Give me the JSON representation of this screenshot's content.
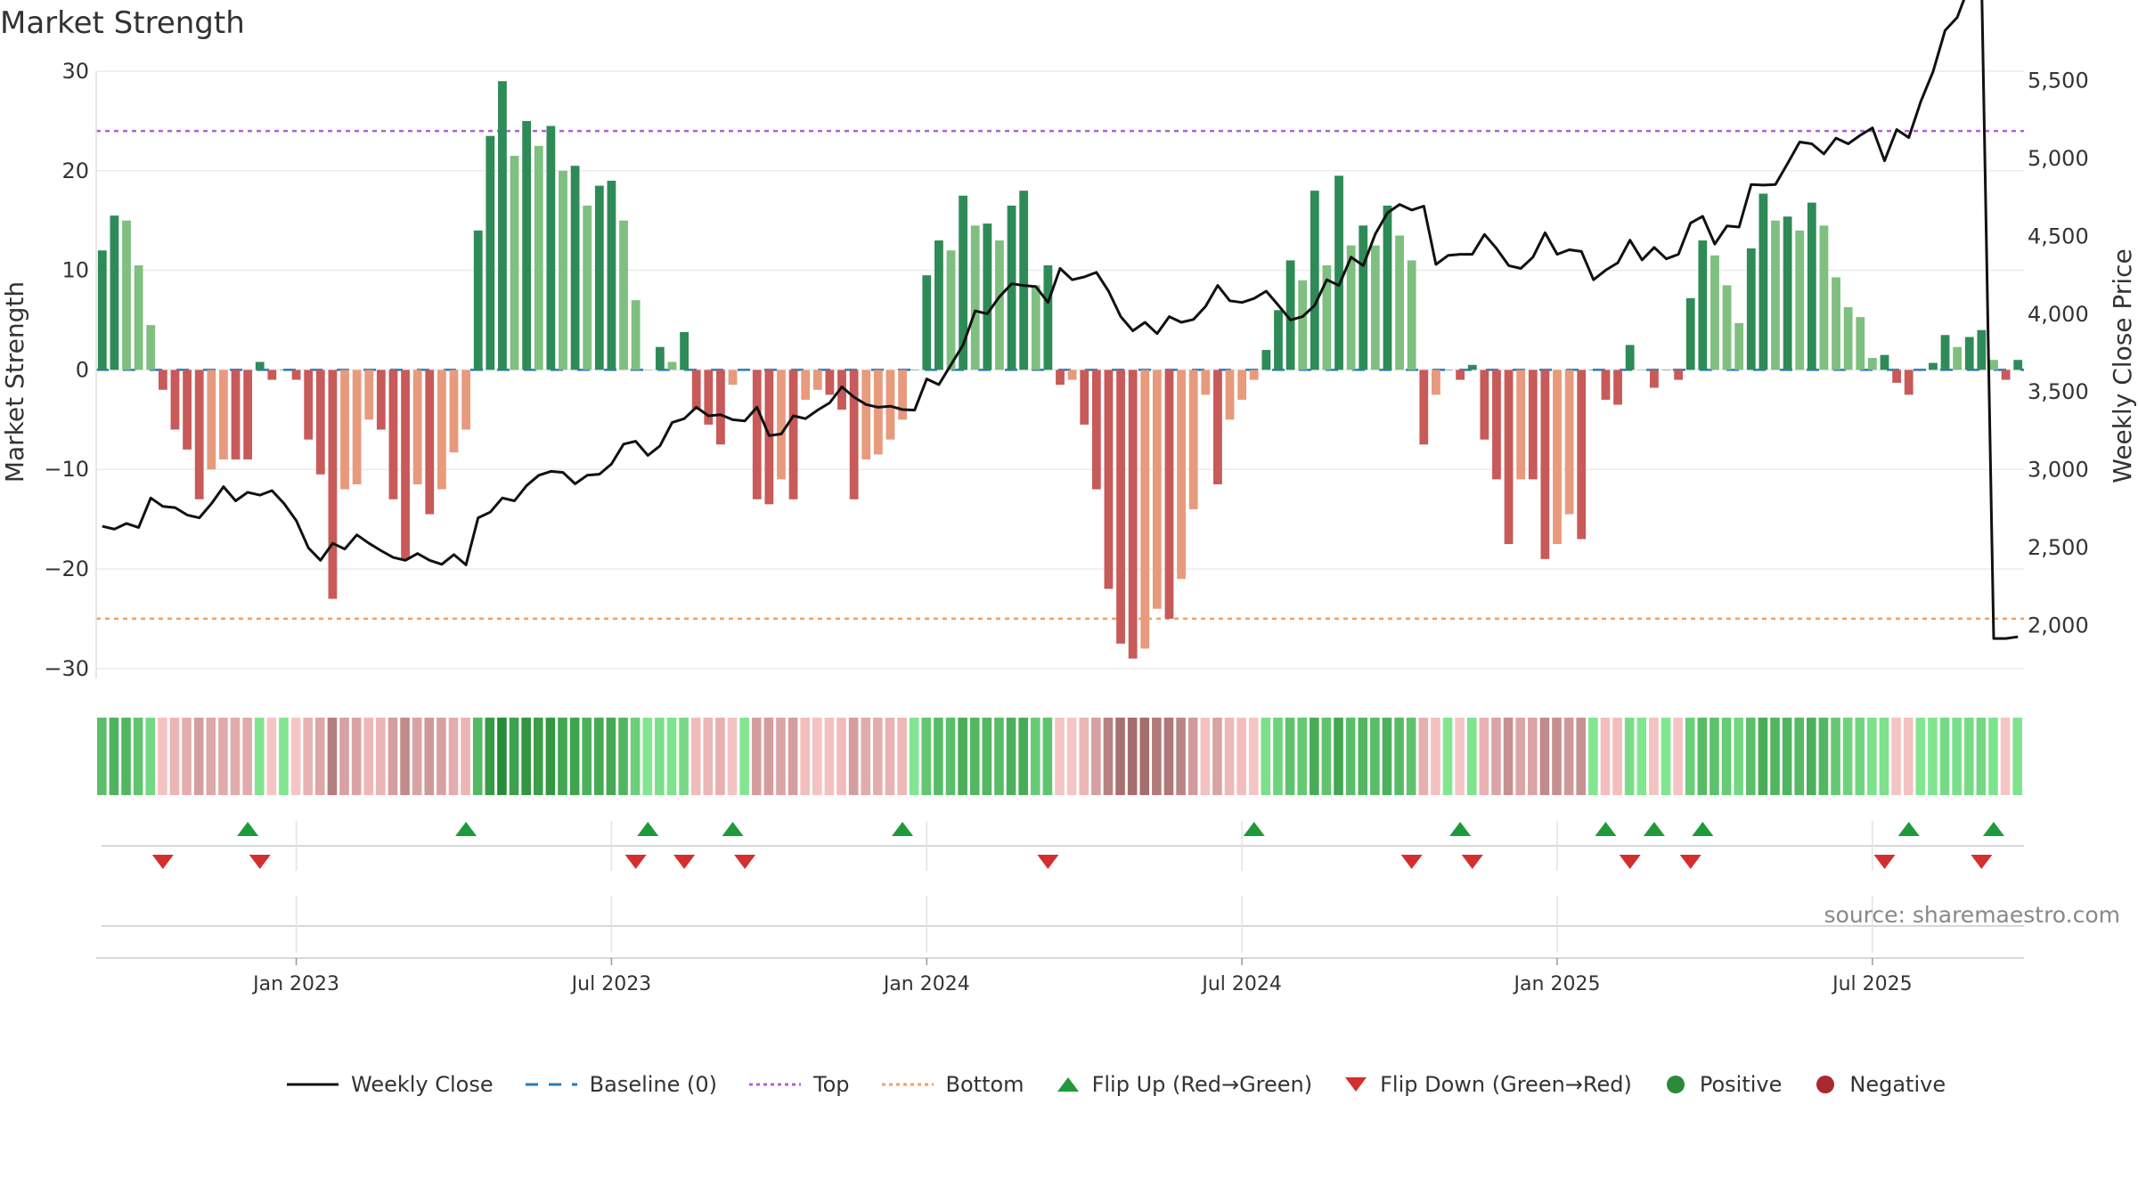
{
  "title": "Market Strength",
  "source": "source: sharemaestro.com",
  "chart_data": {
    "type": "bar+line",
    "title": "Market Strength",
    "ylabel": "Market Strength",
    "y2label": "Weekly Close Price",
    "ylim": [
      -31,
      30
    ],
    "y2lim": [
      1660,
      5560
    ],
    "yticks": [
      30,
      20,
      10,
      0,
      -10,
      -20,
      -30
    ],
    "yticklabels": [
      "30",
      "20",
      "10",
      "0",
      "−10",
      "−20",
      "−30"
    ],
    "y2ticks": [
      5500,
      5000,
      4500,
      4000,
      3500,
      3000,
      2500,
      2000
    ],
    "y2ticklabels": [
      "5,500",
      "5,000",
      "4,500",
      "4,000",
      "3,500",
      "3,000",
      "2,500",
      "2,000"
    ],
    "xticks": [
      {
        "week": 16,
        "label": "Jan 2023"
      },
      {
        "week": 42,
        "label": "Jul 2023"
      },
      {
        "week": 68,
        "label": "Jan 2024"
      },
      {
        "week": 94,
        "label": "Jul 2024"
      },
      {
        "week": 120,
        "label": "Jan 2025"
      },
      {
        "week": 146,
        "label": "Jul 2025"
      }
    ],
    "reference_lines": {
      "baseline": 0,
      "top": 24,
      "bottom": -25
    },
    "strength": [
      12,
      15.5,
      15,
      10.5,
      4.5,
      -2,
      -6,
      -8,
      -13,
      -10,
      -9,
      -9,
      -9,
      0.8,
      -1,
      0,
      -1,
      -7,
      -10.5,
      -23,
      -12,
      -11.5,
      -5,
      -6,
      -13,
      -19,
      -11.5,
      -14.5,
      -12,
      -8.3,
      -6,
      14,
      23.5,
      29,
      21.5,
      25,
      22.5,
      24.5,
      20,
      20.5,
      16.5,
      18.5,
      19,
      15,
      7,
      0,
      2.3,
      0.8,
      3.8,
      -4,
      -5.5,
      -7.5,
      -1.5,
      0,
      -13,
      -13.5,
      -11,
      -13,
      -3,
      -2,
      -2.5,
      -4,
      -13,
      -9,
      -8.5,
      -7,
      -5,
      0,
      9.5,
      13,
      12,
      17.5,
      14.5,
      14.7,
      13,
      16.5,
      18,
      8.5,
      10.5,
      -1.5,
      -1,
      -5.5,
      -12,
      -22,
      -27.5,
      -29,
      -28,
      -24,
      -25,
      -21,
      -14,
      -2.5,
      -11.5,
      -5,
      -3,
      -1,
      2,
      6,
      11,
      9,
      18,
      10.5,
      19.5,
      12.5,
      14.5,
      12.5,
      16.5,
      13.5,
      11,
      -7.5,
      -2.5,
      0,
      -1,
      0.5,
      -7,
      -11,
      -17.5,
      -11,
      -11,
      -19,
      -17.5,
      -14.5,
      -17,
      0,
      -3,
      -3.5,
      2.5,
      0,
      -1.8,
      0,
      -1,
      7.2,
      13,
      11.5,
      8.5,
      4.7,
      12.2,
      17.7,
      15,
      15.4,
      14,
      16.8,
      14.5,
      9.3,
      6.3,
      5.3,
      1.2,
      1.5,
      -1.3,
      -2.5,
      0,
      0.7,
      3.5,
      2.3,
      3.3,
      4,
      1,
      -1,
      1
    ],
    "close_pct": [
      0.23,
      0.225,
      0.235,
      0.228,
      0.28,
      0.265,
      0.263,
      0.25,
      0.245,
      0.27,
      0.3,
      0.275,
      0.29,
      0.285,
      0.293,
      0.27,
      0.24,
      0.192,
      0.17,
      0.2,
      0.19,
      0.215,
      0.2,
      0.187,
      0.175,
      0.17,
      0.182,
      0.17,
      0.163,
      0.18,
      0.162,
      0.245,
      0.255,
      0.28,
      0.275,
      0.302,
      0.32,
      0.327,
      0.325,
      0.305,
      0.32,
      0.322,
      0.34,
      0.375,
      0.38,
      0.355,
      0.372,
      0.413,
      0.42,
      0.44,
      0.425,
      0.427,
      0.418,
      0.416,
      0.44,
      0.39,
      0.393,
      0.425,
      0.42,
      0.435,
      0.448,
      0.476,
      0.458,
      0.445,
      0.44,
      0.442,
      0.436,
      0.435,
      0.49,
      0.48,
      0.515,
      0.55,
      0.61,
      0.605,
      0.635,
      0.658,
      0.655,
      0.653,
      0.625,
      0.685,
      0.665,
      0.67,
      0.678,
      0.645,
      0.6,
      0.575,
      0.59,
      0.57,
      0.6,
      0.59,
      0.595,
      0.618,
      0.655,
      0.628,
      0.625,
      0.632,
      0.645,
      0.62,
      0.594,
      0.6,
      0.62,
      0.665,
      0.655,
      0.705,
      0.69,
      0.746,
      0.783,
      0.798,
      0.788,
      0.795,
      0.692,
      0.708,
      0.71,
      0.71,
      0.745,
      0.72,
      0.69,
      0.685,
      0.705,
      0.748,
      0.71,
      0.718,
      0.715,
      0.665,
      0.682,
      0.695,
      0.735,
      0.7,
      0.722,
      0.702,
      0.71,
      0.765,
      0.777,
      0.728,
      0.76,
      0.758,
      0.833,
      0.832,
      0.833,
      0.87,
      0.908,
      0.905,
      0.887,
      0.915,
      0.905,
      0.92,
      0.933,
      0.875,
      0.93,
      0.916,
      0.98,
      1.032,
      1.105,
      1.128,
      1.185,
      1.196,
      0.032,
      0.032,
      0.035
    ],
    "flip_up_weeks": [
      12,
      30,
      45,
      52,
      66,
      95,
      112,
      124,
      128,
      132,
      149,
      156
    ],
    "flip_down_weeks": [
      5,
      13,
      44,
      48,
      53,
      78,
      108,
      113,
      126,
      131,
      147,
      155
    ]
  },
  "legend": [
    {
      "label": "Weekly Close",
      "icon": "line",
      "color": "#111111"
    },
    {
      "label": "Baseline (0)",
      "icon": "dash",
      "color": "#2a7ab9"
    },
    {
      "label": "Top",
      "icon": "dot-purple",
      "color": "#b35fd6"
    },
    {
      "label": "Bottom",
      "icon": "dot-orange",
      "color": "#f0a060"
    },
    {
      "label": "Flip Up (Red→Green)",
      "icon": "triangle-up",
      "color": "#1e9a3c"
    },
    {
      "label": "Flip Down (Green→Red)",
      "icon": "triangle-down",
      "color": "#d32f2f"
    },
    {
      "label": "Positive",
      "icon": "circle",
      "color": "#2a8a3a"
    },
    {
      "label": "Negative",
      "icon": "circle",
      "color": "#a82a2e"
    }
  ],
  "colors": {
    "pos_strong": "#2e8b57",
    "pos_light": "#7fbf7f",
    "neg_strong": "#c85a5a",
    "neg_light": "#e89a7c",
    "close_line": "#111111",
    "baseline": "#2a7ab9",
    "top": "#b35fd6",
    "bottom": "#f0a060",
    "flip_up": "#1e9a3c",
    "flip_down": "#d32f2f"
  }
}
